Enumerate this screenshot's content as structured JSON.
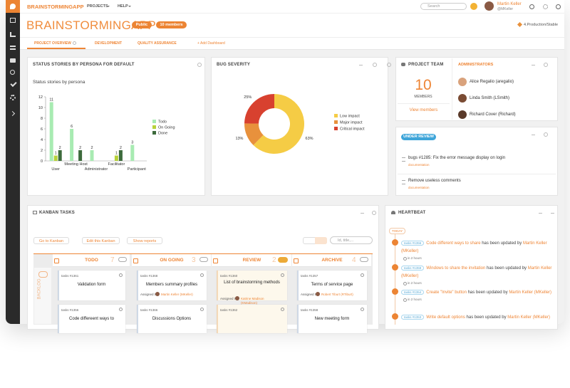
{
  "topbar": {
    "brand": "BRAINSTORMINGAPP",
    "nav": [
      "PROJECTS",
      "HELP"
    ],
    "search": "Search",
    "user": {
      "name": "Martin Keller",
      "handle": "@MKeller"
    }
  },
  "header": {
    "title": "BRAINSTORMINGAPP",
    "badges": [
      "Public",
      "10 members"
    ],
    "status": "4.Production/Stable"
  },
  "tabs": [
    "PROJECT OVERVIEW",
    "DEVELOPMENT",
    "QUALITY ASSURANCE",
    "+ Add Dashboard"
  ],
  "status_panel": {
    "title": "STATUS STORIES BY PERSONA FOR DEFAULT"
  },
  "chart_data": [
    {
      "type": "bar",
      "title": "Status stories by persona",
      "categories": [
        "User",
        "Meeting Host",
        "Administrator",
        "Facilitator",
        "Participant"
      ],
      "series": [
        {
          "name": "Todo",
          "color": "#a8ebb2",
          "values": [
            11,
            6,
            2,
            null,
            3
          ]
        },
        {
          "name": "On Going",
          "color": "#b7d23a",
          "values": [
            1,
            null,
            null,
            1,
            null
          ]
        },
        {
          "name": "Done",
          "color": "#3d6b3c",
          "values": [
            2,
            2,
            null,
            2,
            null
          ]
        }
      ],
      "ylim": [
        0,
        12
      ],
      "yticks": [
        0,
        2,
        4,
        6,
        8,
        10,
        12
      ],
      "grid": false,
      "legend": "right"
    },
    {
      "type": "pie",
      "title": "BUG SEVERITY",
      "donut": true,
      "categories": [
        "Low impact",
        "Major impact",
        "Critical impact"
      ],
      "values": [
        63,
        13,
        25
      ],
      "value_labels": [
        "63%",
        "13%",
        "25%"
      ],
      "colors": [
        "#f5cc45",
        "#e8913c",
        "#d8412f"
      ],
      "legend": "right"
    }
  ],
  "team": {
    "title": "PROJECT TEAM",
    "count": 10,
    "count_label": "MEMBERS",
    "link": "View members",
    "admins_title": "ADMINISTRATORS",
    "admins": [
      "Alice Regalio (aregalio)",
      "Linda Smith (LSmith)",
      "Richard Cover (Richard)"
    ]
  },
  "review": {
    "badge": "UNDER REVIEW",
    "items": [
      {
        "title": "bugs #1285: Fix the error message display on login",
        "tag": "documentation"
      },
      {
        "title": "Remove useless comments",
        "tag": "documentation"
      }
    ]
  },
  "kanban": {
    "title": "KANBAN TASKS",
    "buttons": [
      "Go to Kanban",
      "Edit this Kanban",
      "Show reports"
    ],
    "search": "Id, title,...",
    "backlog": "BACKLOG",
    "columns": [
      {
        "name": "TODO",
        "count": 7,
        "cards": [
          {
            "id": "tasks #1361",
            "title": "Validation form"
          },
          {
            "id": "tasks #1356",
            "title": "Code differeent ways to"
          }
        ]
      },
      {
        "name": "ON GOING",
        "count": 3,
        "cards": [
          {
            "id": "tasks #1368",
            "title": "Members summary profiles",
            "assigned": "Assigned to:",
            "person": "Martin Keller (MKeller)"
          },
          {
            "id": "tasks #1366",
            "title": "Discussions Options"
          }
        ]
      },
      {
        "name": "REVIEW",
        "count": 2,
        "cards": [
          {
            "id": "tasks #1360",
            "title": "List of brainstorming methods",
            "assigned": "Assigned to:",
            "person": "Katrine Madison (KMadison)"
          },
          {
            "id": "tasks #1362",
            "title": ""
          }
        ]
      },
      {
        "name": "ARCHIVE",
        "count": 4,
        "cards": [
          {
            "id": "tasks #1357",
            "title": "Terms of service page",
            "assigned": "Assigned to:",
            "person": "Robert Tiburt (RTiburt)"
          },
          {
            "id": "tasks #1358",
            "title": "New meeting form"
          }
        ]
      }
    ]
  },
  "heartbeat": {
    "title": "HEARTBEAT",
    "day": "TODAY",
    "events": [
      {
        "id": "tasks #1356",
        "title": "Code different ways to share",
        "verb": "has been updated by",
        "user": "Martin Keller (MKeller)",
        "time": "in 2 hours"
      },
      {
        "id": "tasks #1359",
        "title": "Windows to share the invitation",
        "verb": "has been updated by",
        "user": "Martin Keller (MKeller)",
        "time": "in 2 hours"
      },
      {
        "id": "tasks #1354",
        "title": "Create \"Invite\" button",
        "verb": "has been updated by",
        "user": "Martin Keller (MKeller)",
        "time": "in 2 hours"
      },
      {
        "id": "tasks #1353",
        "title": "Write default options",
        "verb": "has been updated by",
        "user": "Martin Keller (MKeller)",
        "time": ""
      }
    ]
  }
}
